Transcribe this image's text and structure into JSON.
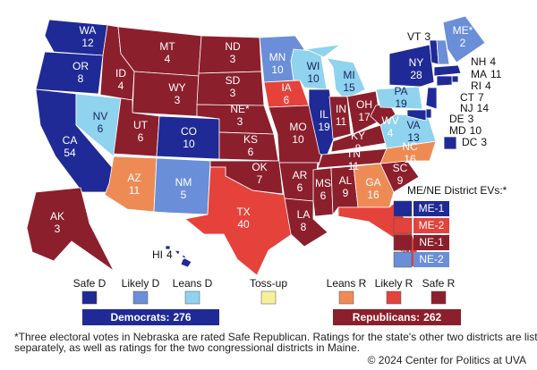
{
  "ratings": [
    {
      "label": "Safe D",
      "color": "#1f2a96"
    },
    {
      "label": "Likely D",
      "color": "#6a8ed8"
    },
    {
      "label": "Leans D",
      "color": "#8fd3ee"
    },
    {
      "label": "Toss-up",
      "color": "#f7f09a"
    },
    {
      "label": "Leans R",
      "color": "#ee8b55"
    },
    {
      "label": "Likely R",
      "color": "#e5423b"
    },
    {
      "label": "Safe R",
      "color": "#8c1f2c"
    }
  ],
  "states": [
    {
      "abbr": "WA",
      "ev": 12,
      "rating": "Safe D"
    },
    {
      "abbr": "OR",
      "ev": 8,
      "rating": "Safe D"
    },
    {
      "abbr": "CA",
      "ev": 54,
      "rating": "Safe D"
    },
    {
      "abbr": "NV",
      "ev": 6,
      "rating": "Leans D"
    },
    {
      "abbr": "ID",
      "ev": 4,
      "rating": "Safe R"
    },
    {
      "abbr": "MT",
      "ev": 4,
      "rating": "Safe R"
    },
    {
      "abbr": "WY",
      "ev": 3,
      "rating": "Safe R"
    },
    {
      "abbr": "UT",
      "ev": 6,
      "rating": "Safe R"
    },
    {
      "abbr": "AZ",
      "ev": 11,
      "rating": "Leans R"
    },
    {
      "abbr": "CO",
      "ev": 10,
      "rating": "Safe D"
    },
    {
      "abbr": "NM",
      "ev": 5,
      "rating": "Likely D"
    },
    {
      "abbr": "ND",
      "ev": 3,
      "rating": "Safe R"
    },
    {
      "abbr": "SD",
      "ev": 3,
      "rating": "Safe R"
    },
    {
      "abbr": "NE*",
      "ev": 3,
      "rating": "Safe R"
    },
    {
      "abbr": "KS",
      "ev": 6,
      "rating": "Safe R"
    },
    {
      "abbr": "OK",
      "ev": 7,
      "rating": "Safe R"
    },
    {
      "abbr": "TX",
      "ev": 40,
      "rating": "Likely R"
    },
    {
      "abbr": "MN",
      "ev": 10,
      "rating": "Likely D"
    },
    {
      "abbr": "IA",
      "ev": 6,
      "rating": "Likely R"
    },
    {
      "abbr": "MO",
      "ev": 10,
      "rating": "Safe R"
    },
    {
      "abbr": "AR",
      "ev": 6,
      "rating": "Safe R"
    },
    {
      "abbr": "LA",
      "ev": 8,
      "rating": "Safe R"
    },
    {
      "abbr": "WI",
      "ev": 10,
      "rating": "Leans D"
    },
    {
      "abbr": "IL",
      "ev": 19,
      "rating": "Safe D"
    },
    {
      "abbr": "MI",
      "ev": 15,
      "rating": "Leans D"
    },
    {
      "abbr": "IN",
      "ev": 11,
      "rating": "Safe R"
    },
    {
      "abbr": "OH",
      "ev": 17,
      "rating": "Safe R"
    },
    {
      "abbr": "KY",
      "ev": 8,
      "rating": "Safe R"
    },
    {
      "abbr": "TN",
      "ev": 11,
      "rating": "Safe R"
    },
    {
      "abbr": "MS",
      "ev": 6,
      "rating": "Safe R"
    },
    {
      "abbr": "AL",
      "ev": 9,
      "rating": "Safe R"
    },
    {
      "abbr": "GA",
      "ev": 16,
      "rating": "Leans R"
    },
    {
      "abbr": "FL",
      "ev": 30,
      "rating": "Likely R"
    },
    {
      "abbr": "SC",
      "ev": 9,
      "rating": "Safe R"
    },
    {
      "abbr": "NC",
      "ev": 16,
      "rating": "Leans R"
    },
    {
      "abbr": "VA",
      "ev": 13,
      "rating": "Leans D"
    },
    {
      "abbr": "WV",
      "ev": 4,
      "rating": "Safe R"
    },
    {
      "abbr": "PA",
      "ev": 19,
      "rating": "Leans D"
    },
    {
      "abbr": "NY",
      "ev": 28,
      "rating": "Safe D"
    },
    {
      "abbr": "ME*",
      "ev": 2,
      "rating": "Likely D"
    },
    {
      "abbr": "VT",
      "ev": 3,
      "rating": "Safe D"
    },
    {
      "abbr": "NH",
      "ev": 4,
      "rating": "Likely D"
    },
    {
      "abbr": "MA",
      "ev": 11,
      "rating": "Safe D"
    },
    {
      "abbr": "RI",
      "ev": 4,
      "rating": "Safe D"
    },
    {
      "abbr": "CT",
      "ev": 7,
      "rating": "Safe D"
    },
    {
      "abbr": "NJ",
      "ev": 14,
      "rating": "Safe D"
    },
    {
      "abbr": "DE",
      "ev": 3,
      "rating": "Safe D"
    },
    {
      "abbr": "MD",
      "ev": 10,
      "rating": "Safe D"
    },
    {
      "abbr": "DC",
      "ev": 3,
      "rating": "Safe D"
    },
    {
      "abbr": "HI",
      "ev": 4,
      "rating": "Safe D"
    },
    {
      "abbr": "AK",
      "ev": 3,
      "rating": "Safe R"
    }
  ],
  "districts": {
    "title": "ME/NE District EVs:*",
    "items": [
      {
        "label": "ME-1",
        "rating": "Safe D"
      },
      {
        "label": "ME-2",
        "rating": "Likely R"
      },
      {
        "label": "NE-1",
        "rating": "Safe R"
      },
      {
        "label": "NE-2",
        "rating": "Likely D"
      }
    ]
  },
  "totals": [
    {
      "label": "Democrats:",
      "value": 276,
      "color": "#1f2a96"
    },
    {
      "label": "Republicans:",
      "value": 262,
      "color": "#8c1f2c"
    }
  ],
  "footnote": [
    "*Three electoral votes in Nebraska are rated Safe Republican. Ratings for the state's other two districts are listed",
    "separately, as well as ratings for the two congressional districts in Maine."
  ],
  "credit": "© 2024 Center for Politics at UVA"
}
